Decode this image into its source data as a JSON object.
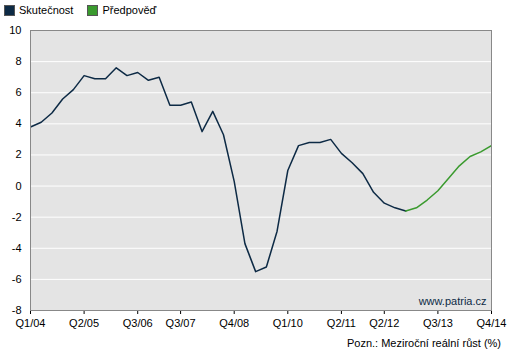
{
  "chart_data": {
    "type": "line",
    "categories": [
      "Q1/04",
      null,
      null,
      null,
      null,
      "Q2/05",
      null,
      null,
      null,
      null,
      "Q3/06",
      null,
      null,
      null,
      "Q3/07",
      null,
      null,
      null,
      null,
      "Q4/08",
      null,
      null,
      null,
      null,
      "Q1/10",
      null,
      null,
      null,
      null,
      "Q2/11",
      null,
      null,
      null,
      "Q2/12",
      null,
      null,
      null,
      null,
      "Q3/13",
      null,
      null,
      null,
      null,
      "Q4/14"
    ],
    "series": [
      {
        "name": "Skutečnost",
        "color": "#0d2a45",
        "values": [
          3.8,
          4.1,
          4.7,
          5.6,
          6.2,
          7.1,
          6.9,
          6.9,
          7.6,
          7.1,
          7.3,
          6.8,
          7.0,
          5.2,
          5.2,
          5.4,
          3.5,
          4.8,
          3.3,
          0.3,
          -3.7,
          -5.5,
          -5.2,
          -2.9,
          1.0,
          2.6,
          2.8,
          2.8,
          3.0,
          2.1,
          1.5,
          0.8,
          -0.4,
          -1.1,
          -1.4,
          -1.6,
          null,
          null,
          null,
          null,
          null,
          null,
          null,
          null
        ]
      },
      {
        "name": "Předpověď",
        "color": "#3a9a2e",
        "values": [
          null,
          null,
          null,
          null,
          null,
          null,
          null,
          null,
          null,
          null,
          null,
          null,
          null,
          null,
          null,
          null,
          null,
          null,
          null,
          null,
          null,
          null,
          null,
          null,
          null,
          null,
          null,
          null,
          null,
          null,
          null,
          null,
          null,
          null,
          null,
          -1.6,
          -1.4,
          -0.9,
          -0.3,
          0.5,
          1.3,
          1.9,
          2.2,
          2.6
        ]
      }
    ],
    "ylim": [
      -8,
      10
    ],
    "yticks": [
      -8,
      -6,
      -4,
      -2,
      0,
      2,
      4,
      6,
      8,
      10
    ],
    "grid": true,
    "legend": "top-left",
    "source": "www.patria.cz",
    "note": "Pozn.: Meziroční reální růst (%)"
  }
}
